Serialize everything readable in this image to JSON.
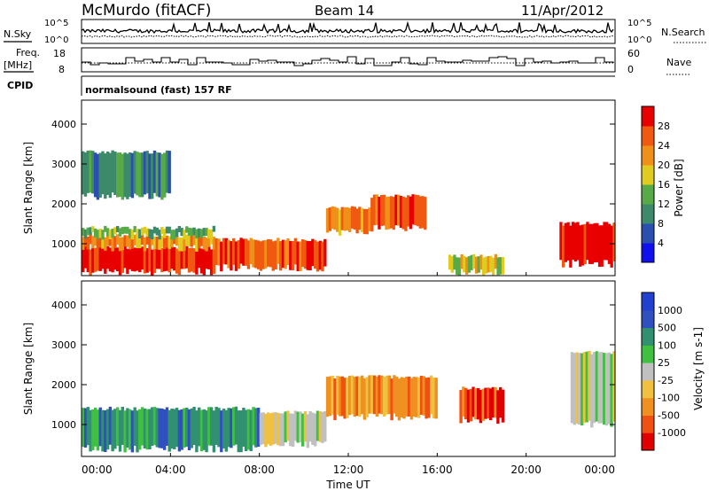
{
  "header": {
    "station": "McMurdo (fitACF)",
    "beam": "Beam 14",
    "date": "11/Apr/2012"
  },
  "strip_labels": {
    "nsky": "N.Sky",
    "nsearch": "N.Search",
    "freq_line1": "Freq.",
    "freq_line2": "[MHz]",
    "nave": "Nave",
    "cpid": "CPID",
    "program": "normalsound (fast) 157 RF",
    "noise_ticks_left": [
      "10^5",
      "10^0"
    ],
    "noise_ticks_right": [
      "10^5",
      "10^0"
    ],
    "freq_ticks": [
      "18",
      "8"
    ],
    "nave_ticks": [
      "60",
      "0"
    ]
  },
  "time_axis": {
    "label": "Time UT",
    "ticks": [
      "00:00",
      "04:00",
      "08:00",
      "12:00",
      "16:00",
      "20:00",
      "00:00"
    ]
  },
  "colors": {
    "power_scale": [
      "#1010ee",
      "#2a4fb0",
      "#3d8a6a",
      "#58aa48",
      "#e0cc20",
      "#f09018",
      "#f05a10",
      "#e80000"
    ],
    "velocity_scale": [
      "#e00000",
      "#f05010",
      "#f09020",
      "#f0c040",
      "#c0c0c0",
      "#40c040",
      "#309070",
      "#3050c0",
      "#2040d0"
    ],
    "ground_scatter": "#b0b0b0"
  },
  "chart_data": [
    {
      "type": "heatmap",
      "name": "power",
      "ylabel": "Slant Range [km]",
      "xlabel": "",
      "ylim": [
        200,
        4600
      ],
      "yticks": [
        1000,
        2000,
        3000,
        4000
      ],
      "xlim_hours": [
        0,
        24
      ],
      "colorbar": {
        "label": "Power [dB]",
        "tick_values": [
          "4",
          "8",
          "12",
          "16",
          "20",
          "24",
          "28"
        ],
        "range": [
          0,
          32
        ]
      },
      "regions": [
        {
          "t0": 0,
          "t1": 6,
          "r0": 300,
          "r1": 900,
          "level": 7
        },
        {
          "t0": 0,
          "t1": 6,
          "r0": 900,
          "r1": 1200,
          "level": 5
        },
        {
          "t0": 0,
          "t1": 6,
          "r0": 1200,
          "r1": 1400,
          "level": 3
        },
        {
          "t0": 6,
          "t1": 11,
          "r0": 400,
          "r1": 1100,
          "level": 6
        },
        {
          "t0": 11,
          "t1": 13,
          "r0": 1300,
          "r1": 1900,
          "level": 5
        },
        {
          "t0": 13,
          "t1": 15.5,
          "r0": 1400,
          "r1": 2200,
          "level": 6
        },
        {
          "t0": 0,
          "t1": 4,
          "r0": 2200,
          "r1": 3300,
          "level": 2
        },
        {
          "t0": 16.5,
          "t1": 19,
          "r0": 300,
          "r1": 700,
          "level": 4
        },
        {
          "t0": 21.5,
          "t1": 24,
          "r0": 500,
          "r1": 1500,
          "level": 7
        }
      ]
    },
    {
      "type": "heatmap",
      "name": "velocity",
      "ylabel": "Slant Range [km]",
      "xlabel": "Time UT",
      "ylim": [
        200,
        4600
      ],
      "yticks": [
        1000,
        2000,
        3000,
        4000
      ],
      "xlim_hours": [
        0,
        24
      ],
      "colorbar": {
        "label": "Velocity [m s-1]",
        "tick_values": [
          "-1000",
          "-500",
          "-100",
          "-25",
          "25",
          "100",
          "500",
          "1000"
        ]
      },
      "regions": [
        {
          "t0": 0,
          "t1": 8,
          "r0": 400,
          "r1": 1400,
          "level": 6
        },
        {
          "t0": 8,
          "t1": 11,
          "r0": 500,
          "r1": 1300,
          "level": 4
        },
        {
          "t0": 11,
          "t1": 16,
          "r0": 1200,
          "r1": 2200,
          "level": 2
        },
        {
          "t0": 17,
          "t1": 19,
          "r0": 1100,
          "r1": 1900,
          "level": 1
        },
        {
          "t0": 22,
          "t1": 24,
          "r0": 1000,
          "r1": 2800,
          "level": 4
        }
      ]
    }
  ]
}
